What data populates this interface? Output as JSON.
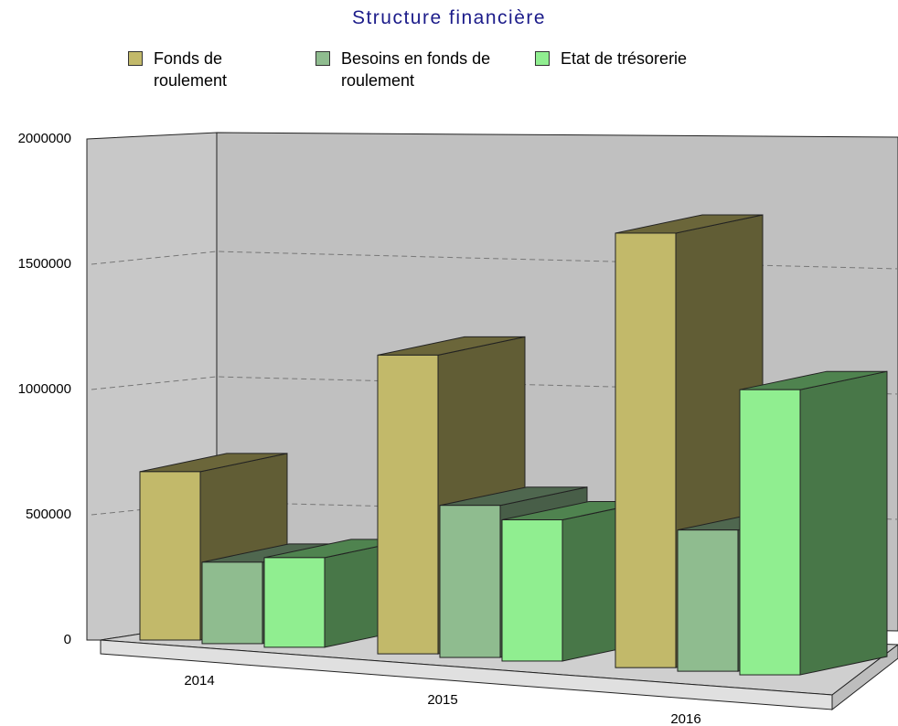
{
  "chart_data": {
    "type": "bar3d",
    "title": "Structure financière",
    "categories": [
      "2014",
      "2015",
      "2016"
    ],
    "series": [
      {
        "name": "Fonds de roulement",
        "color": "#c2b96a",
        "values": [
          620000,
          1100000,
          1600000
        ]
      },
      {
        "name": "Besoins en fonds de roulement",
        "color": "#8fbc8f",
        "values": [
          300000,
          560000,
          520000
        ]
      },
      {
        "name": "Etat de trésorerie",
        "color": "#90ee90",
        "values": [
          330000,
          520000,
          1050000
        ]
      }
    ],
    "ylim": [
      0,
      2000000
    ],
    "yticks": [
      0,
      500000,
      1000000,
      1500000,
      2000000
    ],
    "grid": true,
    "legend": "top"
  }
}
